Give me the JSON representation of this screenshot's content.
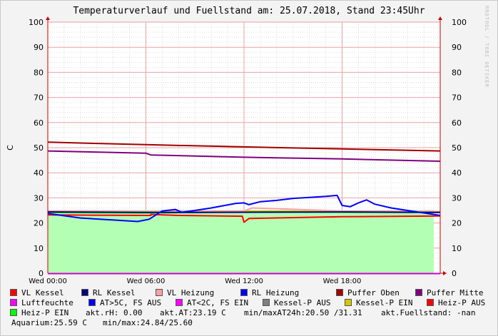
{
  "title": "Temperaturverlauf und Fuellstand am: 25.07.2018, Stand 23:45Uhr",
  "watermark": "RRDTOOL / TOBI OETIKER",
  "colors": {
    "grid_major": "#e7a2a2",
    "grid_minor": "#dddddd",
    "axis": "#cc0000",
    "plot_bg": "#ffffff",
    "aquarium_fill": "#b3ffb3"
  },
  "chart_data": {
    "type": "line",
    "ylabel": "C",
    "ylim": [
      0,
      100
    ],
    "yticks": [
      0,
      10,
      20,
      30,
      40,
      50,
      60,
      70,
      80,
      90,
      100
    ],
    "xlim_hours": [
      0,
      24
    ],
    "xticks": [
      {
        "hour": 0,
        "label": "Wed 00:00"
      },
      {
        "hour": 6,
        "label": "Wed 06:00"
      },
      {
        "hour": 12,
        "label": "Wed 12:00"
      },
      {
        "hour": 18,
        "label": "Wed 18:00"
      }
    ],
    "right_axis": true,
    "grid": true,
    "series": [
      {
        "name": "Luftfeuchte",
        "color": "#00ff00",
        "style": "area",
        "x": [
          0,
          23.6,
          23.61
        ],
        "y": [
          25.2,
          25.2,
          0
        ]
      },
      {
        "name": "Heiz-P EIN",
        "color": "#00ff00",
        "x": [
          0,
          6,
          12,
          18,
          24
        ],
        "y": [
          24.2,
          24.0,
          24.4,
          24.3,
          24.2
        ]
      },
      {
        "name": "Kessel-P EIN",
        "color": "#d4c800",
        "x": [
          0,
          6,
          12,
          18,
          24
        ],
        "y": [
          24.6,
          24.5,
          24.7,
          24.6,
          24.5
        ]
      },
      {
        "name": "VL Heizung",
        "color": "#ffa0a0",
        "x": [
          0,
          6,
          12,
          12.5,
          18,
          24
        ],
        "y": [
          24.8,
          24.6,
          24.8,
          26.0,
          24.8,
          24.6
        ]
      },
      {
        "name": "VL Kessel",
        "color": "#ff0000",
        "x": [
          0,
          6.3,
          6.3,
          8,
          11.9,
          12.0,
          12.3,
          18,
          24
        ],
        "y": [
          23.2,
          23.0,
          23.4,
          23.0,
          22.7,
          20.3,
          21.8,
          22.5,
          22.8
        ]
      },
      {
        "name": "RL Kessel",
        "color": "#000080",
        "x": [
          0,
          6,
          12,
          18,
          24
        ],
        "y": [
          24.4,
          24.2,
          24.3,
          24.4,
          24.2
        ]
      },
      {
        "name": "RL Heizung",
        "color": "#0000ff",
        "x": [
          0,
          2,
          4,
          5.5,
          6.2,
          7,
          7.8,
          8.2,
          9,
          10,
          11.5,
          12,
          12.3,
          13,
          14,
          15,
          16,
          17,
          17.7,
          18,
          18.5,
          19,
          19.5,
          20,
          21,
          22,
          23,
          24
        ],
        "y": [
          23.8,
          22.0,
          21.2,
          20.6,
          21.5,
          24.8,
          25.4,
          24.3,
          25.0,
          26.0,
          27.8,
          28.0,
          27.3,
          28.5,
          29.0,
          29.8,
          30.2,
          30.6,
          31.0,
          27.0,
          26.5,
          28.0,
          29.2,
          27.5,
          26.0,
          25.0,
          24.0,
          23.0
        ]
      },
      {
        "name": "Puffer Oben",
        "color": "#a00000",
        "x": [
          0,
          6,
          12,
          18,
          24
        ],
        "y": [
          52.2,
          51.2,
          50.3,
          49.5,
          48.7
        ]
      },
      {
        "name": "Puffer Mitte",
        "color": "#800080",
        "x": [
          0,
          6,
          6.3,
          12,
          18,
          24
        ],
        "y": [
          48.7,
          47.8,
          47.1,
          46.2,
          45.5,
          44.6
        ]
      }
    ]
  },
  "legend": {
    "items": [
      {
        "label": "VL Kessel",
        "color": "#ff0000"
      },
      {
        "label": "RL Kessel",
        "color": "#000080"
      },
      {
        "label": "VL Heizung",
        "color": "#ffa0a0"
      },
      {
        "label": "RL Heizung",
        "color": "#0000ff"
      },
      {
        "label": "Puffer Oben",
        "color": "#a00000"
      },
      {
        "label": "Puffer Mitte",
        "color": "#800080"
      },
      {
        "label": "Luftfeuchte",
        "color": "#ff00ff"
      },
      {
        "label": "AT>5C, FS AUS",
        "color": "#0000ff"
      },
      {
        "label": "AT<2C, FS EIN",
        "color": "#ff00ff"
      },
      {
        "label": "Kessel-P AUS",
        "color": "#808080"
      },
      {
        "label": "Kessel-P EIN",
        "color": "#d4c800"
      },
      {
        "label": "Heiz-P AUS",
        "color": "#ff0000"
      },
      {
        "label": "Heiz-P EIN",
        "color": "#00ff00"
      }
    ],
    "stats": {
      "rh": "akt.rH: 0.00",
      "at": "akt.AT:23.19 C",
      "minmax_at": "min/maxAT24h:20.50 /31.31",
      "fuellstand": "akt.Fuellstand: -nan",
      "aquarium": "Aquarium:25.59 C",
      "minmax_aq": "min/max:24.84/25.60"
    }
  }
}
